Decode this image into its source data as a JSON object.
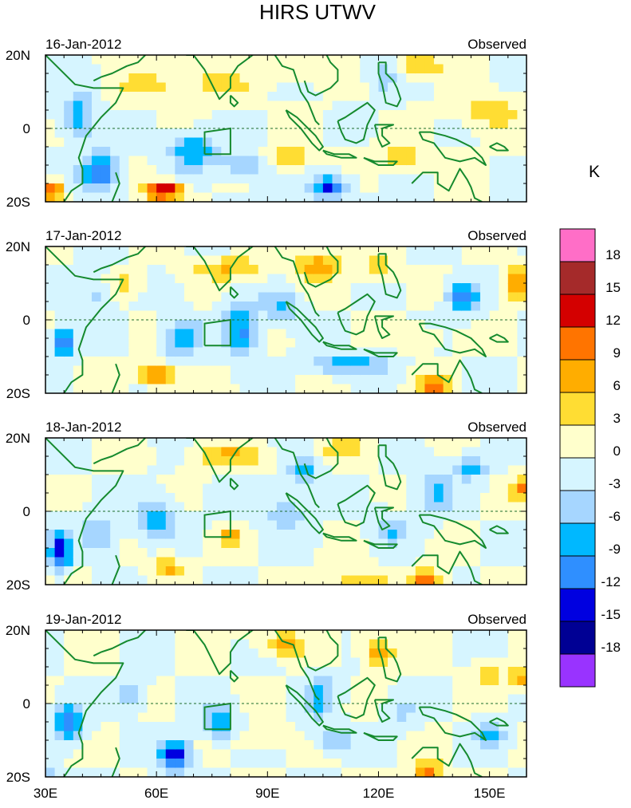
{
  "chart_data": {
    "type": "heatmap",
    "title": "HIRS UTWV",
    "colorbar": {
      "unit": "K",
      "levels": [
        18,
        15,
        12,
        9,
        6,
        3,
        0,
        -3,
        -6,
        -9,
        -12,
        -15,
        -18
      ],
      "level_labels": [
        "18",
        "15",
        "12",
        "9",
        "6",
        "3",
        "0",
        "-3",
        "-6",
        "-9",
        "-12",
        "-15",
        "-18"
      ],
      "colors": [
        "#ff6ec7",
        "#a52a2a",
        "#d40000",
        "#ff7400",
        "#ffad00",
        "#ffdd33",
        "#ffffcc",
        "#d6f5ff",
        "#a6d6ff",
        "#00b8ff",
        "#2f8fff",
        "#0000e0",
        "#000094",
        "#9933ff"
      ]
    },
    "x_ticks": [
      "30E",
      "60E",
      "90E",
      "120E",
      "150E"
    ],
    "x_tick_values": [
      30,
      60,
      90,
      120,
      150
    ],
    "y_ticks": [
      "20N",
      "0",
      "20S"
    ],
    "y_tick_values": [
      20,
      0,
      -20
    ],
    "xlim": [
      30,
      160
    ],
    "ylim": [
      -20,
      20
    ],
    "equator_line": "dashed",
    "panels": [
      {
        "date": "16-Jan-2012",
        "label": "Observed"
      },
      {
        "date": "17-Jan-2012",
        "label": "Observed"
      },
      {
        "date": "18-Jan-2012",
        "label": "Observed"
      },
      {
        "date": "19-Jan-2012",
        "label": "Observed"
      }
    ]
  }
}
